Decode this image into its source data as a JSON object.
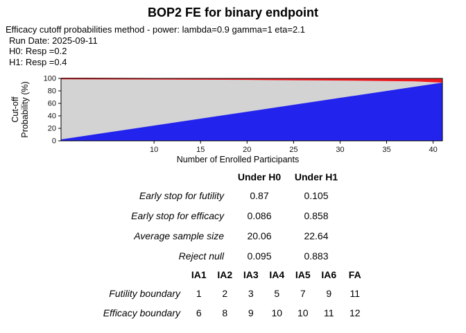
{
  "title": "BOP2 FE for binary endpoint",
  "subtitle": [
    "Efficacy cutoff probabilities method - power: lambda=0.9 gamma=1 eta=2.1",
    "Run Date: 2025-09-11",
    "H0: Resp =0.2",
    "H1: Resp =0.4"
  ],
  "chart_data": {
    "type": "area",
    "title": "",
    "xlabel": "Number of Enrolled Participants",
    "ylabel_lines": [
      "Cut-off",
      "Probability (%)"
    ],
    "xlim": [
      0,
      41
    ],
    "ylim": [
      0,
      100
    ],
    "x_ticks": [
      10,
      15,
      20,
      25,
      30,
      35,
      40
    ],
    "y_ticks": [
      0,
      20,
      40,
      60,
      80,
      100
    ],
    "plot_bg": "#d3d3d3",
    "colors": {
      "futility": "#2323ee",
      "efficacy": "#f0181f"
    },
    "series": [
      {
        "name": "futility-stop-region",
        "fill": "below",
        "color": "#2323ee",
        "x": [
          0,
          41
        ],
        "values": [
          1,
          92
        ]
      },
      {
        "name": "efficacy-stop-region",
        "fill": "above",
        "color": "#f0181f",
        "x": [
          0,
          10,
          20,
          30,
          38,
          41
        ],
        "values": [
          99.8,
          99.4,
          98.8,
          97.8,
          96.5,
          94.5
        ]
      }
    ]
  },
  "oc_table": {
    "col_headers": [
      "Under H0",
      "Under H1"
    ],
    "rows": [
      {
        "label": "Early stop for futility",
        "values": [
          "0.87",
          "0.105"
        ]
      },
      {
        "label": "Early stop for efficacy",
        "values": [
          "0.086",
          "0.858"
        ]
      },
      {
        "label": "Average sample size",
        "values": [
          "20.06",
          "22.64"
        ]
      },
      {
        "label": "Reject null",
        "values": [
          "0.095",
          "0.883"
        ]
      }
    ]
  },
  "boundary_table": {
    "col_headers": [
      "IA1",
      "IA2",
      "IA3",
      "IA4",
      "IA5",
      "IA6",
      "FA"
    ],
    "rows": [
      {
        "label": "Futility boundary",
        "values": [
          "1",
          "2",
          "3",
          "5",
          "7",
          "9",
          "11"
        ]
      },
      {
        "label": "Efficacy boundary",
        "values": [
          "6",
          "8",
          "9",
          "10",
          "10",
          "11",
          "12"
        ]
      }
    ]
  }
}
